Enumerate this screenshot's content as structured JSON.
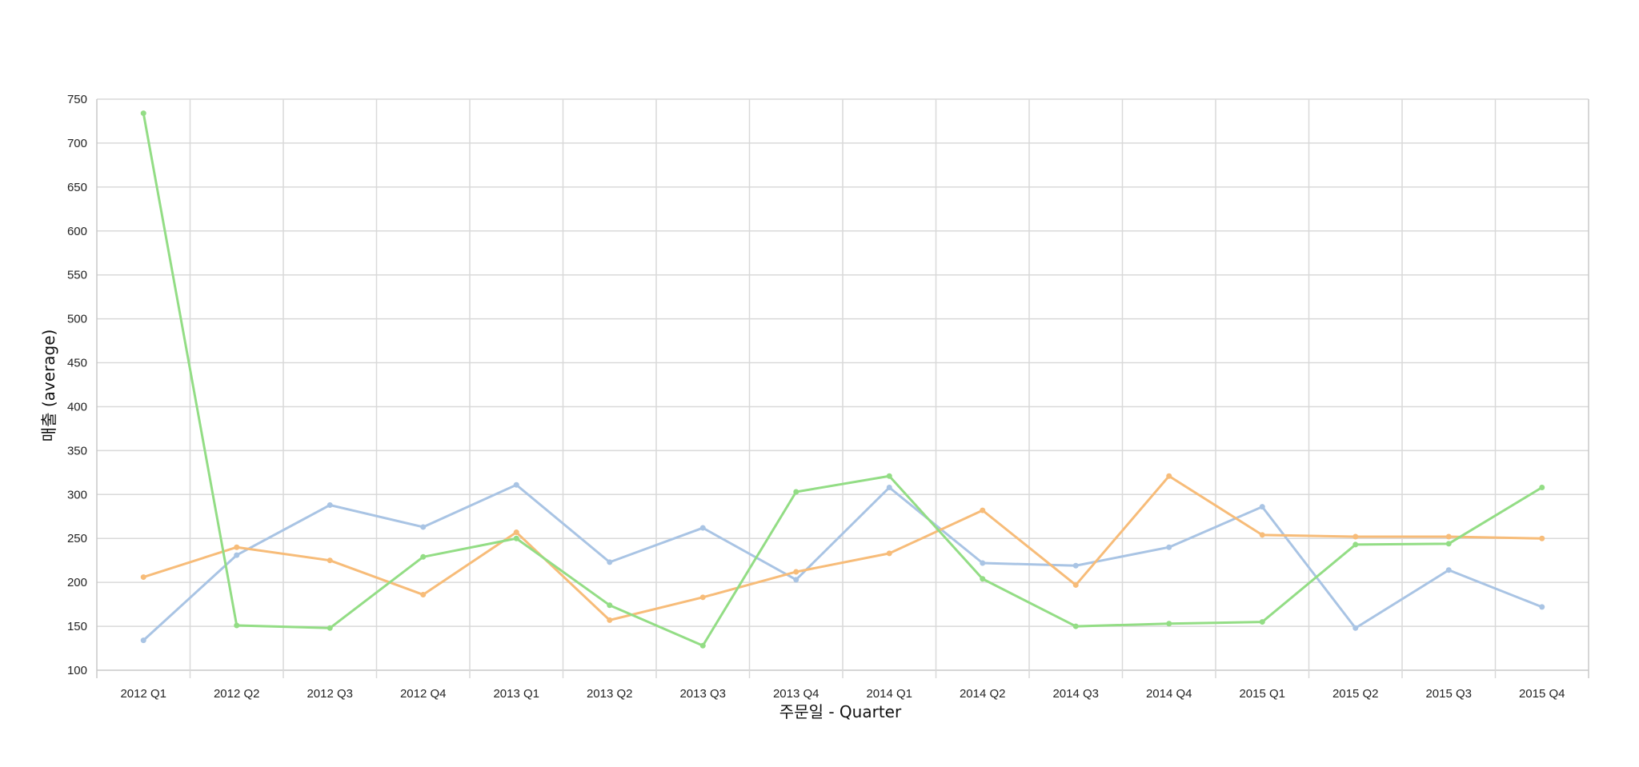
{
  "chart_data": {
    "type": "line",
    "xlabel": "주문일 - Quarter",
    "ylabel": "매출 (average)",
    "ylim": [
      100,
      750
    ],
    "yticks": [
      100,
      150,
      200,
      250,
      300,
      350,
      400,
      450,
      500,
      550,
      600,
      650,
      700,
      750
    ],
    "grid": true,
    "categories": [
      "2012 Q1",
      "2012 Q2",
      "2012 Q3",
      "2012 Q4",
      "2013 Q1",
      "2013 Q2",
      "2013 Q3",
      "2013 Q4",
      "2014 Q1",
      "2014 Q2",
      "2014 Q3",
      "2014 Q4",
      "2015 Q1",
      "2015 Q2",
      "2015 Q3",
      "2015 Q4"
    ],
    "series": [
      {
        "color": "#a9c4e4",
        "values": [
          134,
          231,
          288,
          263,
          311,
          223,
          262,
          203,
          308,
          222,
          219,
          240,
          286,
          148,
          214,
          172
        ]
      },
      {
        "color": "#f7bc79",
        "values": [
          206,
          240,
          225,
          186,
          257,
          157,
          183,
          212,
          233,
          282,
          197,
          321,
          254,
          252,
          252,
          250
        ]
      },
      {
        "color": "#93dd85",
        "values": [
          734,
          151,
          148,
          229,
          250,
          174,
          128,
          303,
          321,
          204,
          150,
          153,
          155,
          243,
          244,
          308
        ]
      }
    ]
  }
}
